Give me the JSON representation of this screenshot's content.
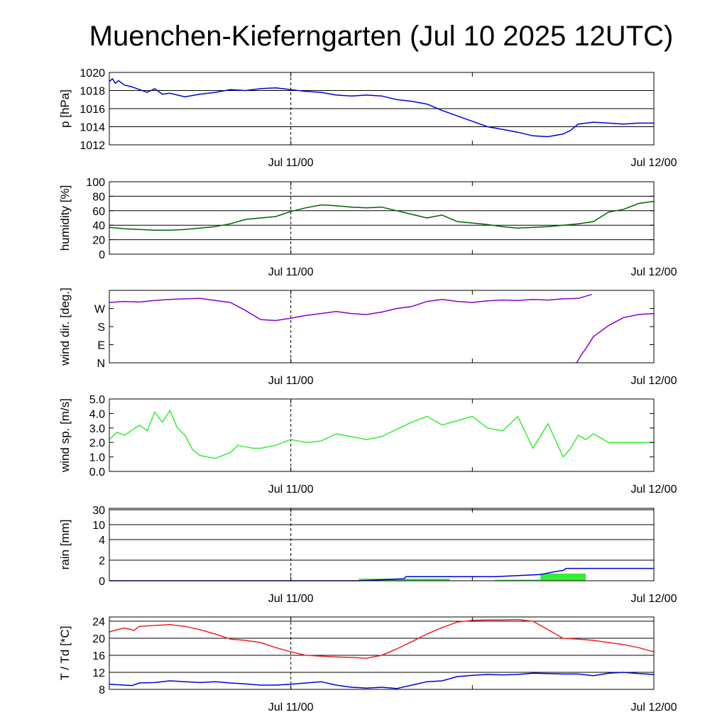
{
  "title": "Muenchen-Kieferngarten (Jul 10 2025 12UTC)",
  "x_tick_labels": [
    "Jul 11/00",
    "Jul 12/00"
  ],
  "chart_data": [
    {
      "id": "pressure",
      "type": "line",
      "ylabel": "p [hPa]",
      "ylim": [
        1012,
        1020
      ],
      "yticks": [
        1012,
        1014,
        1016,
        1018,
        1020
      ],
      "grid_lines": [
        1014,
        1016,
        1018,
        1020
      ],
      "x_unit": "hours since Jul 10 12UTC",
      "xlim": [
        0,
        36
      ],
      "series": [
        {
          "color": "#0000dd",
          "x": [
            0,
            0.2,
            0.4,
            0.6,
            1.0,
            1.5,
            2.0,
            2.5,
            3.0,
            3.5,
            4.0,
            5.0,
            6.0,
            7.0,
            8.0,
            9.0,
            10.0,
            11.0,
            12.0,
            13.0,
            14.0,
            15.0,
            16.0,
            17.0,
            18.0,
            19.0,
            20.0,
            21.0,
            22.0,
            23.0,
            24.0,
            25.0,
            26.0,
            27.0,
            28.0,
            29.0,
            30.0,
            30.5,
            31.0,
            32.0,
            33.0,
            34.0,
            35.0,
            36.0
          ],
          "values": [
            1019.0,
            1019.3,
            1018.8,
            1019.1,
            1018.6,
            1018.4,
            1018.1,
            1017.8,
            1018.2,
            1017.6,
            1017.7,
            1017.3,
            1017.6,
            1017.8,
            1018.1,
            1018.0,
            1018.2,
            1018.3,
            1018.1,
            1017.9,
            1017.8,
            1017.5,
            1017.4,
            1017.5,
            1017.4,
            1017.0,
            1016.8,
            1016.5,
            1015.8,
            1015.2,
            1014.6,
            1014.0,
            1013.7,
            1013.4,
            1013.0,
            1012.9,
            1013.2,
            1013.6,
            1014.3,
            1014.5,
            1014.4,
            1014.3,
            1014.4,
            1014.4
          ]
        }
      ]
    },
    {
      "id": "humidity",
      "type": "line",
      "ylabel": "humidity [%]",
      "ylim": [
        0,
        100
      ],
      "yticks": [
        0,
        20,
        40,
        60,
        80,
        100
      ],
      "grid_lines": [
        20,
        40,
        60,
        80
      ],
      "x_unit": "hours since Jul 10 12UTC",
      "xlim": [
        0,
        36
      ],
      "series": [
        {
          "color": "#006400",
          "x": [
            0,
            1,
            2,
            3,
            4,
            5,
            6,
            7,
            8,
            9,
            10,
            11,
            12,
            13,
            14,
            15,
            16,
            17,
            18,
            19,
            20,
            21,
            22,
            23,
            24,
            25,
            26,
            27,
            28,
            29,
            30,
            31,
            32,
            33,
            34,
            35,
            36
          ],
          "values": [
            37,
            35,
            34,
            33,
            33,
            34,
            36,
            38,
            42,
            48,
            50,
            52,
            59,
            64,
            68,
            67,
            65,
            64,
            65,
            60,
            55,
            50,
            54,
            45,
            43,
            41,
            38,
            36,
            37,
            38,
            40,
            42,
            45,
            58,
            62,
            70,
            73
          ]
        }
      ]
    },
    {
      "id": "wind_direction",
      "type": "line",
      "ylabel": "wind dir. [deg.]",
      "ylim": [
        0,
        360
      ],
      "yticks": [
        0,
        90,
        180,
        270
      ],
      "ytick_labels": [
        "N",
        "E",
        "S",
        "W"
      ],
      "grid_lines": [],
      "x_unit": "hours since Jul 10 12UTC",
      "xlim": [
        0,
        36
      ],
      "series": [
        {
          "color": "#8800cc",
          "x": [
            0,
            1,
            2,
            3,
            4,
            5,
            6,
            7,
            8,
            9,
            10,
            11,
            12,
            13,
            14,
            15,
            16,
            17,
            18,
            19,
            20,
            21,
            22,
            23,
            24,
            25,
            26,
            27,
            28,
            29,
            30,
            31,
            31.9
          ],
          "values": [
            300,
            305,
            302,
            310,
            315,
            318,
            320,
            310,
            300,
            260,
            215,
            210,
            222,
            235,
            245,
            255,
            245,
            240,
            252,
            270,
            280,
            305,
            315,
            305,
            300,
            308,
            312,
            310,
            315,
            312,
            318,
            320,
            340
          ]
        },
        {
          "color": "#8800cc",
          "x": [
            30.9,
            31.2,
            31.5,
            32,
            33,
            34,
            35,
            36
          ],
          "values": [
            0,
            40,
            70,
            130,
            185,
            225,
            240,
            245
          ]
        }
      ]
    },
    {
      "id": "wind_speed",
      "type": "line",
      "ylabel": "wind sp. [m/s]",
      "ylim": [
        0,
        5
      ],
      "yticks": [
        0,
        1,
        2,
        3,
        4,
        5
      ],
      "ytick_labels": [
        "0.0",
        "1.0",
        "2.0",
        "3.0",
        "4.0",
        "5.0"
      ],
      "grid_lines": [],
      "x_unit": "hours since Jul 10 12UTC",
      "xlim": [
        0,
        36
      ],
      "series": [
        {
          "color": "#33ee33",
          "x": [
            0,
            0.5,
            1,
            2,
            2.5,
            3,
            3.5,
            4,
            4.5,
            5,
            5.5,
            6,
            7,
            8,
            8.5,
            9,
            9.5,
            10,
            11,
            12,
            13,
            14,
            15,
            16,
            17,
            18,
            19,
            20,
            21,
            22,
            23,
            24,
            25,
            26,
            27,
            28,
            29,
            30,
            30.5,
            31,
            31.5,
            32,
            33,
            34,
            35,
            36
          ],
          "values": [
            2.2,
            2.7,
            2.5,
            3.2,
            2.8,
            4.1,
            3.4,
            4.2,
            3.0,
            2.5,
            1.5,
            1.1,
            0.9,
            1.3,
            1.8,
            1.7,
            1.6,
            1.6,
            1.8,
            2.2,
            2.0,
            2.1,
            2.6,
            2.4,
            2.2,
            2.4,
            2.9,
            3.4,
            3.8,
            3.2,
            3.5,
            3.8,
            3.0,
            2.8,
            3.8,
            1.6,
            3.3,
            1.0,
            1.6,
            2.5,
            2.2,
            2.6,
            2.0,
            2.0,
            2.0,
            2.0
          ]
        }
      ]
    },
    {
      "id": "rain",
      "type": "bar+line",
      "ylabel": "rain [mm]",
      "ylim": [
        0,
        30
      ],
      "yticks": [
        0,
        2,
        4,
        10,
        30
      ],
      "ytick_positions_note": "non-linear scale",
      "grid_lines": [
        2,
        4,
        10,
        30
      ],
      "x_unit": "hours since Jul 10 12UTC",
      "xlim": [
        0,
        36
      ],
      "bars": {
        "color": "#33ee33",
        "segments": [
          {
            "x_start": 16.5,
            "x_end": 19.5,
            "value": 0.2
          },
          {
            "x_start": 19.5,
            "x_end": 22.5,
            "value": 0.2
          },
          {
            "x_start": 25.5,
            "x_end": 28.5,
            "value": 0.1
          },
          {
            "x_start": 28.5,
            "x_end": 31.5,
            "value": 0.7
          }
        ]
      },
      "series": [
        {
          "name": "accumulated",
          "color": "#0000dd",
          "x": [
            0,
            16.5,
            19.5,
            19.6,
            22.5,
            25.5,
            28.5,
            29.5,
            30.0,
            30.2,
            36
          ],
          "values": [
            0,
            0.0,
            0.2,
            0.4,
            0.4,
            0.4,
            0.6,
            0.9,
            1.0,
            1.2,
            1.2
          ]
        }
      ]
    },
    {
      "id": "temperature",
      "type": "line",
      "ylabel": "T / Td [*C]",
      "ylim": [
        8,
        25
      ],
      "yticks": [
        8,
        12,
        16,
        20,
        24
      ],
      "grid_lines": [
        12,
        16,
        20,
        24
      ],
      "x_unit": "hours since Jul 10 12UTC",
      "xlim": [
        0,
        36
      ],
      "series": [
        {
          "color": "#ee2222",
          "x": [
            0,
            0.5,
            1,
            1.5,
            1.6,
            2,
            3,
            4,
            5,
            6,
            7,
            8,
            9,
            10,
            11,
            12,
            13,
            14,
            15,
            16,
            17,
            18,
            19,
            20,
            21,
            22,
            23,
            24,
            25,
            26,
            27,
            28,
            29,
            30,
            31,
            32,
            33,
            34,
            35,
            36
          ],
          "values": [
            21.5,
            22.0,
            22.4,
            22.0,
            21.8,
            22.8,
            23.0,
            23.2,
            22.8,
            22.0,
            21.0,
            19.8,
            19.5,
            19.0,
            17.8,
            16.8,
            16.0,
            15.8,
            15.6,
            15.5,
            15.3,
            16.0,
            17.5,
            19.2,
            21.0,
            22.5,
            23.8,
            24.2,
            24.3,
            24.3,
            24.4,
            24.0,
            22.0,
            20.0,
            19.8,
            19.5,
            19.0,
            18.5,
            17.8,
            16.8
          ]
        },
        {
          "color": "#0000dd",
          "x": [
            0,
            1,
            1.5,
            2,
            3,
            4,
            5,
            6,
            7,
            8,
            9,
            10,
            11,
            12,
            13,
            14,
            15,
            16,
            17,
            18,
            19,
            20,
            21,
            22,
            23,
            24,
            25,
            26,
            27,
            28,
            29,
            30,
            31,
            32,
            33,
            34,
            35,
            36
          ],
          "values": [
            9.2,
            9.0,
            8.9,
            9.5,
            9.6,
            10.0,
            9.8,
            9.6,
            9.8,
            9.5,
            9.3,
            9.0,
            9.0,
            9.2,
            9.5,
            9.8,
            9.0,
            8.5,
            8.3,
            8.5,
            8.2,
            9.0,
            9.8,
            10.0,
            11.0,
            11.3,
            11.5,
            11.4,
            11.5,
            11.8,
            11.7,
            11.6,
            11.6,
            11.2,
            11.8,
            12.0,
            11.7,
            11.5
          ]
        }
      ]
    }
  ]
}
